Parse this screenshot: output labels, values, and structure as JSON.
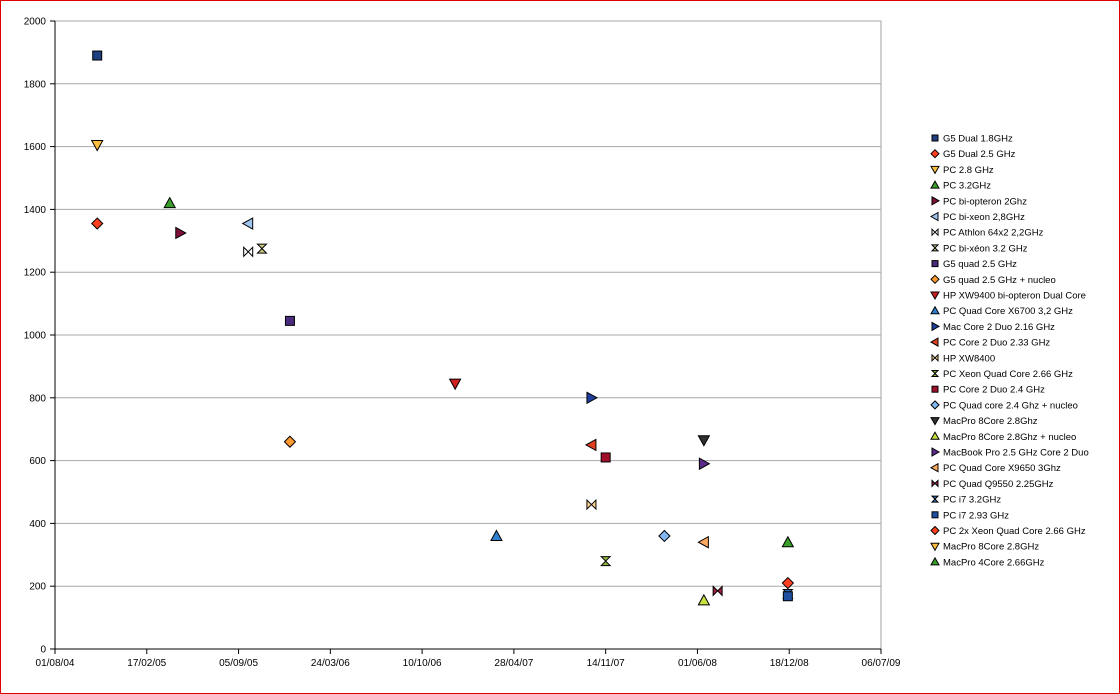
{
  "chart_data": {
    "type": "scatter",
    "title": "",
    "xlabel": "",
    "ylabel": "",
    "grid": "horizontal",
    "legend": "right",
    "ylim": [
      0,
      2000
    ],
    "xlim": [
      "2004-08-01",
      "2009-07-06"
    ],
    "y_ticks": [
      "0",
      "200",
      "400",
      "600",
      "800",
      "1000",
      "1200",
      "1400",
      "1600",
      "1800",
      "2000"
    ],
    "x_ticks": [
      "01/08/04",
      "17/02/05",
      "05/09/05",
      "24/03/06",
      "10/10/06",
      "28/04/07",
      "14/11/07",
      "01/06/08",
      "18/12/08",
      "06/07/09"
    ],
    "series": [
      {
        "name": "G5 Dual 1.8GHz",
        "color": "#1f3f7f",
        "marker": "square",
        "points": [
          {
            "x": "2004-11-01",
            "y": 1890
          }
        ]
      },
      {
        "name": "G5 Dual 2.5 GHz",
        "color": "#ff4020",
        "marker": "diamond",
        "points": [
          {
            "x": "2004-11-01",
            "y": 1355
          }
        ]
      },
      {
        "name": "PC 2.8 GHz",
        "color": "#ffc040",
        "marker": "triangle-down",
        "points": [
          {
            "x": "2004-11-01",
            "y": 1605
          }
        ]
      },
      {
        "name": "PC 3.2GHz",
        "color": "#3a9e2a",
        "marker": "triangle-up",
        "points": [
          {
            "x": "2005-04-08",
            "y": 1420
          }
        ]
      },
      {
        "name": "PC bi-opteron 2Ghz",
        "color": "#80103a",
        "marker": "triangle-right",
        "points": [
          {
            "x": "2005-05-01",
            "y": 1325
          }
        ]
      },
      {
        "name": "PC bi-xeon 2,8GHz",
        "color": "#9fc4ee",
        "marker": "triangle-left",
        "points": [
          {
            "x": "2005-09-26",
            "y": 1355
          }
        ]
      },
      {
        "name": "PC Athlon 64x2 2,2GHz",
        "color": "#ffffff",
        "marker": "bowtie",
        "points": [
          {
            "x": "2005-09-26",
            "y": 1265
          }
        ]
      },
      {
        "name": "PC bi-xéon 3.2 GHz",
        "color": "#c8c880",
        "marker": "hourglass",
        "points": [
          {
            "x": "2005-10-26",
            "y": 1275
          }
        ]
      },
      {
        "name": "G5 quad 2.5 GHz",
        "color": "#4a2a7a",
        "marker": "square",
        "points": [
          {
            "x": "2005-12-26",
            "y": 1045
          }
        ]
      },
      {
        "name": "G5 quad 2.5 GHz + nucleo",
        "color": "#ff9a30",
        "marker": "diamond",
        "points": [
          {
            "x": "2005-12-26",
            "y": 660
          }
        ]
      },
      {
        "name": "HP XW9400 bi-opteron Dual Core",
        "color": "#d02020",
        "marker": "triangle-down",
        "points": [
          {
            "x": "2006-12-21",
            "y": 845
          }
        ]
      },
      {
        "name": "PC Quad Core X6700 3,2 GHz",
        "color": "#3080d0",
        "marker": "triangle-up",
        "points": [
          {
            "x": "2007-03-21",
            "y": 360
          }
        ]
      },
      {
        "name": "Mac Core 2 Duo 2.16 GHz",
        "color": "#1f3f9f",
        "marker": "triangle-right",
        "points": [
          {
            "x": "2007-10-14",
            "y": 800
          }
        ]
      },
      {
        "name": "PC Core 2 Duo 2.33 GHz",
        "color": "#e04020",
        "marker": "triangle-left",
        "points": [
          {
            "x": "2007-10-14",
            "y": 650
          }
        ]
      },
      {
        "name": "HP XW8400",
        "color": "#ffd890",
        "marker": "bowtie",
        "points": [
          {
            "x": "2007-10-14",
            "y": 460
          }
        ]
      },
      {
        "name": "PC Xeon Quad Core 2.66 GHz",
        "color": "#90b040",
        "marker": "hourglass",
        "points": [
          {
            "x": "2007-11-14",
            "y": 280
          }
        ]
      },
      {
        "name": "PC Core 2 Duo 2.4 GHz",
        "color": "#a0102a",
        "marker": "square",
        "points": [
          {
            "x": "2007-11-14",
            "y": 610
          }
        ]
      },
      {
        "name": "PC Quad core 2.4 Ghz + nucleo",
        "color": "#80b8f0",
        "marker": "diamond",
        "points": [
          {
            "x": "2008-03-21",
            "y": 360
          }
        ]
      },
      {
        "name": "MacPro 8Core 2.8Ghz",
        "color": "#303030",
        "marker": "triangle-down",
        "points": [
          {
            "x": "2008-06-15",
            "y": 665
          }
        ]
      },
      {
        "name": "MacPro 8Core 2.8Ghz + nucleo",
        "color": "#c8e040",
        "marker": "triangle-up",
        "points": [
          {
            "x": "2008-06-15",
            "y": 155
          }
        ]
      },
      {
        "name": "MacBook Pro 2.5 GHz Core 2 Duo",
        "color": "#5a2a8a",
        "marker": "triangle-right",
        "points": [
          {
            "x": "2008-06-15",
            "y": 590
          }
        ]
      },
      {
        "name": "PC Quad Core X9650 3Ghz",
        "color": "#ffa860",
        "marker": "triangle-left",
        "points": [
          {
            "x": "2008-06-15",
            "y": 340
          }
        ]
      },
      {
        "name": "PC Quad Q9550 2.25GHz",
        "color": "#a02040",
        "marker": "bowtie",
        "points": [
          {
            "x": "2008-07-15",
            "y": 185
          }
        ]
      },
      {
        "name": "PC i7 3.2GHz",
        "color": "#3070c0",
        "marker": "hourglass",
        "points": [
          {
            "x": "2008-12-15",
            "y": 175
          }
        ]
      },
      {
        "name": "PC i7 2.93 GHz",
        "color": "#1f4fa0",
        "marker": "square",
        "points": [
          {
            "x": "2008-12-15",
            "y": 168
          }
        ]
      },
      {
        "name": "PC 2x Xeon Quad Core 2.66 GHz",
        "color": "#ff4020",
        "marker": "diamond",
        "points": [
          {
            "x": "2008-12-15",
            "y": 210
          }
        ]
      },
      {
        "name": "MacPro 8Core 2.8GHz",
        "color": "#ffc040",
        "marker": "triangle-down",
        "points": []
      },
      {
        "name": "MacPro 4Core 2.66GHz",
        "color": "#3a9e2a",
        "marker": "triangle-up",
        "points": [
          {
            "x": "2008-12-15",
            "y": 340
          }
        ]
      }
    ]
  }
}
